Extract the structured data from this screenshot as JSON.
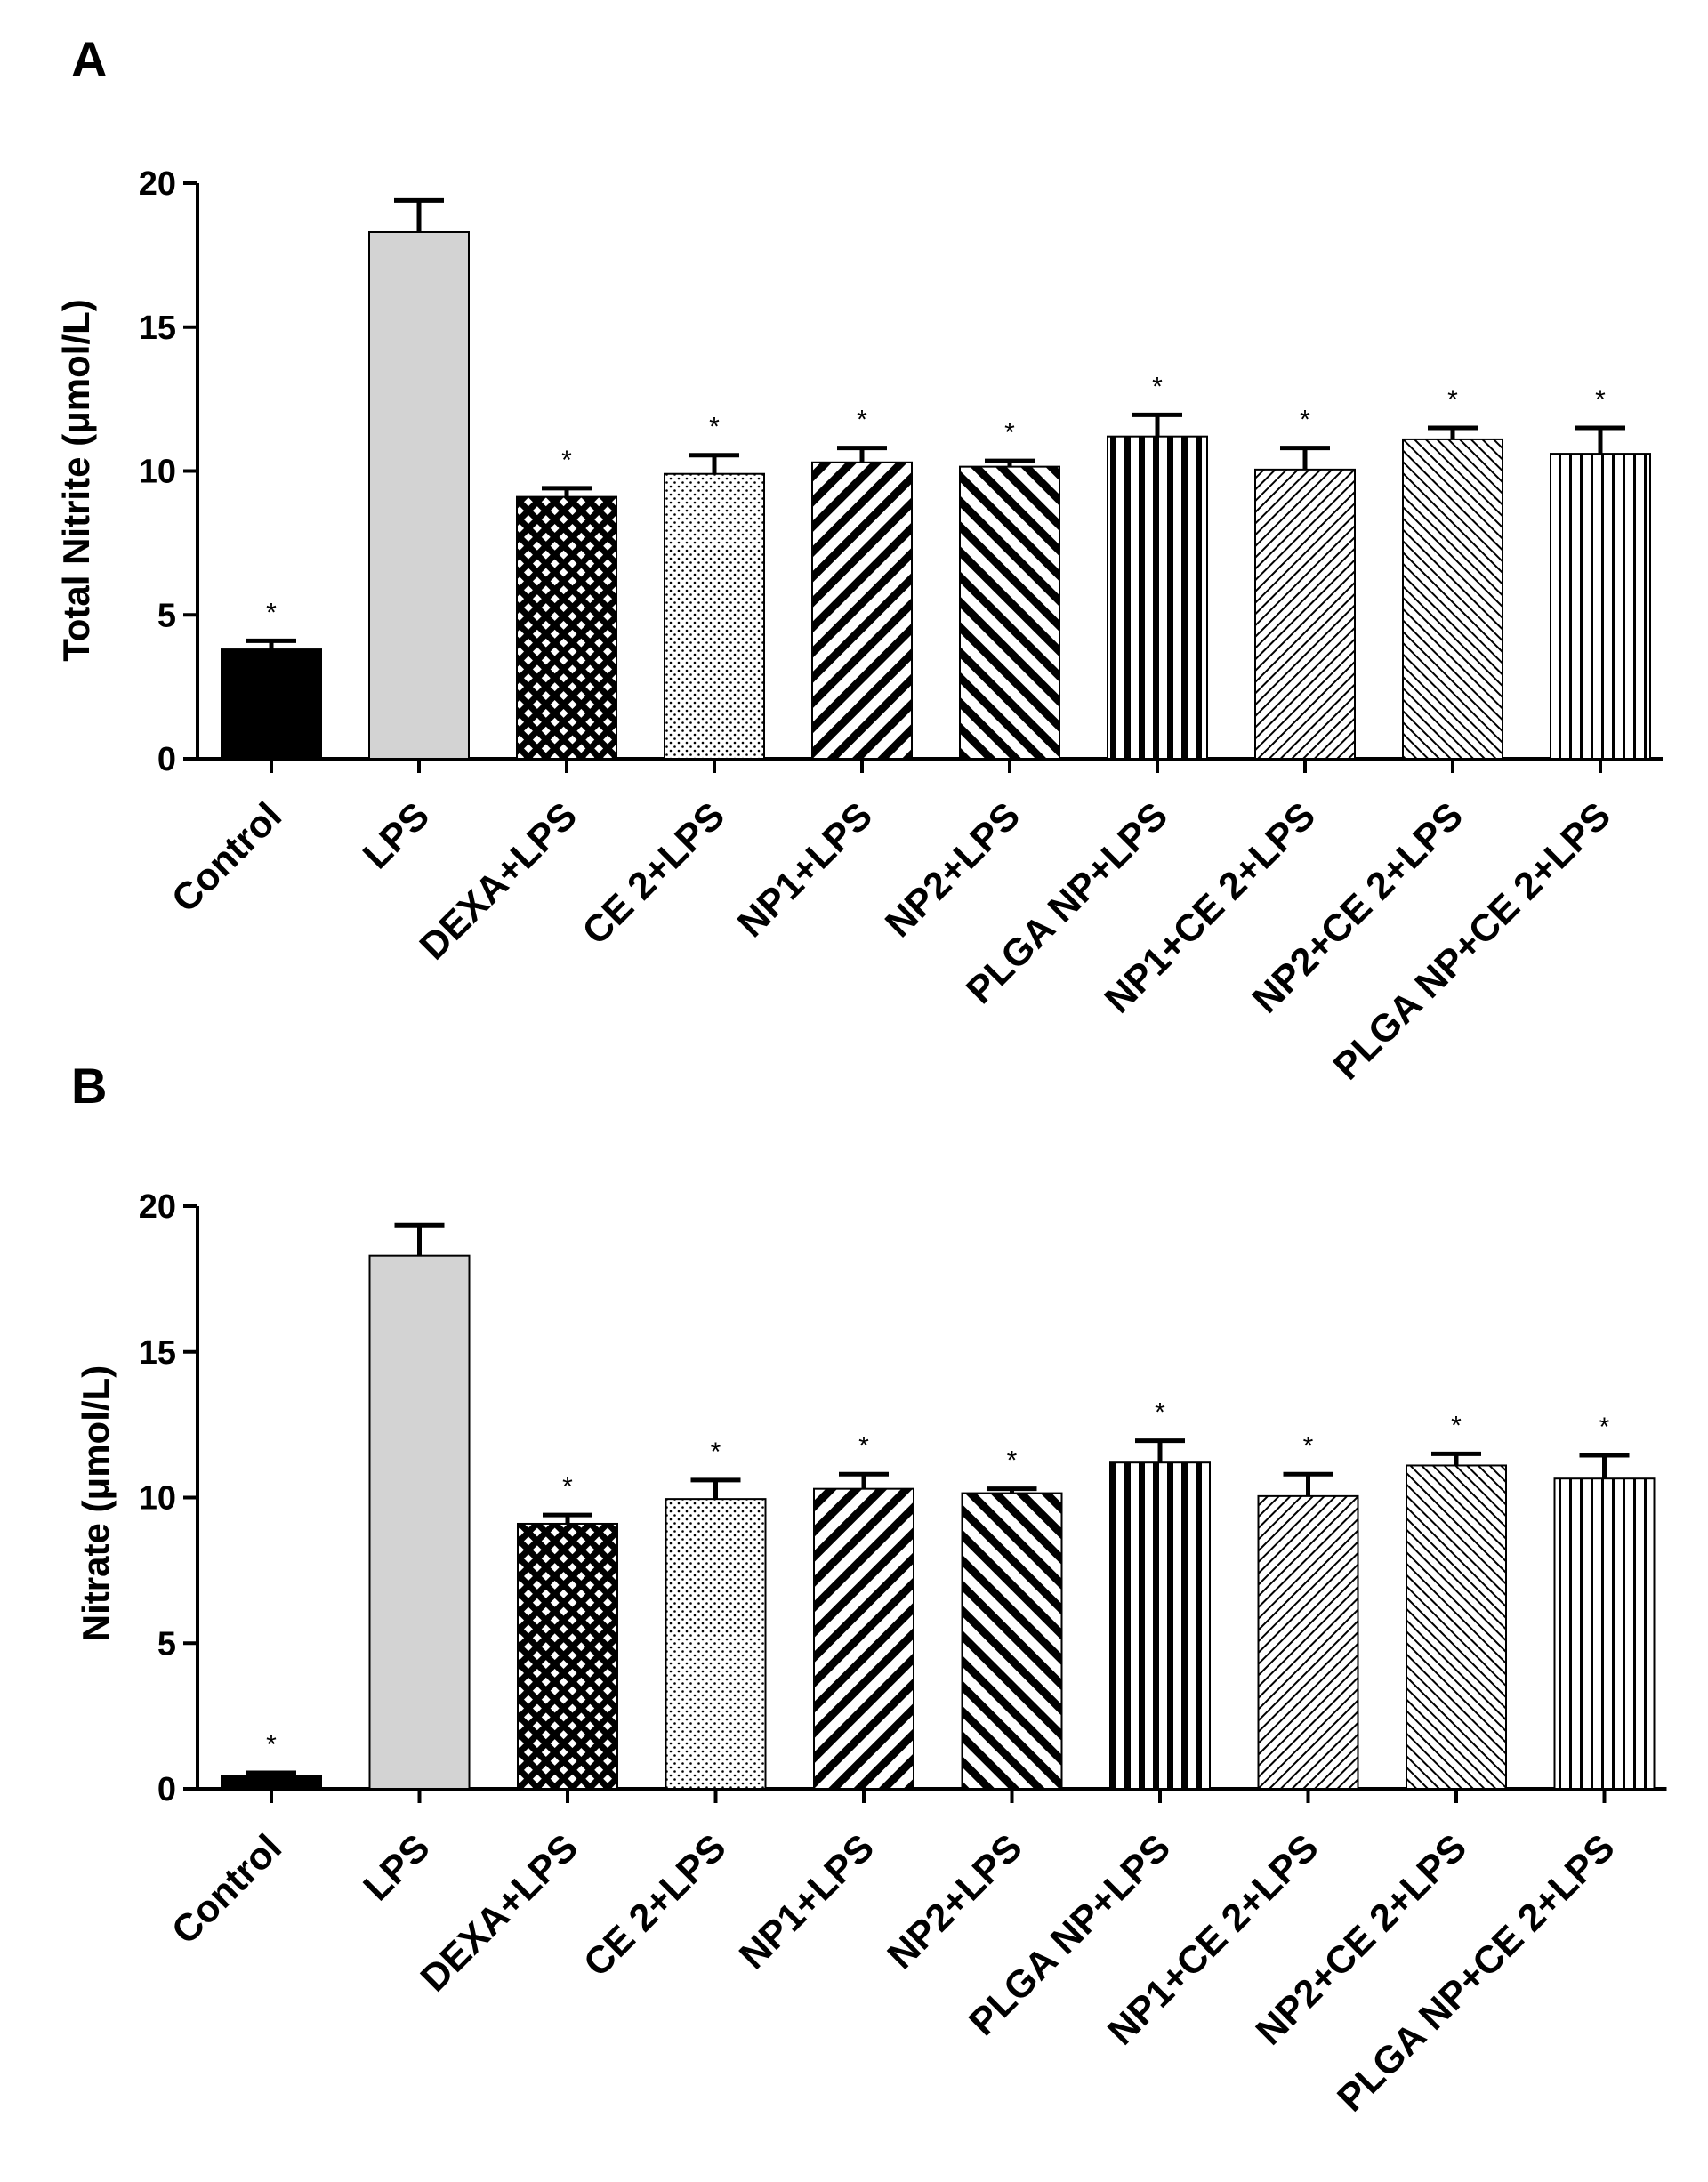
{
  "chart_data": [
    {
      "type": "bar",
      "panel": "A",
      "title": "",
      "xlabel": "",
      "ylabel": "Total Nitrite (μmol/L)",
      "ylim": [
        0,
        20
      ],
      "yticks": [
        "0",
        "5",
        "10",
        "15",
        "20"
      ],
      "categories": [
        "Control",
        "LPS",
        "DEXA+LPS",
        "CE 2+LPS",
        "NP1+LPS",
        "NP2+LPS",
        "PLGA NP+LPS",
        "NP1+CE 2+LPS",
        "NP2+CE 2+LPS",
        "PLGA NP+CE 2+LPS"
      ],
      "values": [
        3.8,
        18.3,
        9.1,
        9.9,
        10.3,
        10.15,
        11.2,
        10.05,
        11.1,
        10.6
      ],
      "errors": [
        0.3,
        1.1,
        0.3,
        0.65,
        0.5,
        0.2,
        0.75,
        0.75,
        0.4,
        0.9
      ],
      "annotations": [
        "*",
        "",
        "*",
        "*",
        "*",
        "*",
        "*",
        "*",
        "*",
        "*"
      ]
    },
    {
      "type": "bar",
      "panel": "B",
      "title": "",
      "xlabel": "",
      "ylabel": "Nitrate (μmol/L)",
      "ylim": [
        0,
        20
      ],
      "yticks": [
        "0",
        "5",
        "10",
        "15",
        "20"
      ],
      "categories": [
        "Control",
        "LPS",
        "DEXA+LPS",
        "CE 2+LPS",
        "NP1+LPS",
        "NP2+LPS",
        "PLGA NP+LPS",
        "NP1+CE 2+LPS",
        "NP2+CE 2+LPS",
        "PLGA NP+CE 2+LPS"
      ],
      "values": [
        0.45,
        18.3,
        9.1,
        9.95,
        10.3,
        10.15,
        11.2,
        10.05,
        11.1,
        10.65
      ],
      "errors": [
        0.1,
        1.05,
        0.3,
        0.65,
        0.5,
        0.15,
        0.75,
        0.75,
        0.4,
        0.8
      ],
      "annotations": [
        "*",
        "",
        "*",
        "*",
        "*",
        "*",
        "*",
        "*",
        "*",
        "*"
      ]
    }
  ],
  "bar_styles": [
    "solid",
    "light-gray",
    "crosshatch",
    "dots",
    "diag-thick",
    "diag-thick-back",
    "vertical-thick",
    "diag-thin",
    "diag-thin-back",
    "vertical-thin"
  ],
  "colors": {
    "ink": "#000000",
    "lps_fill": "#d3d3d3",
    "background": "#ffffff"
  }
}
